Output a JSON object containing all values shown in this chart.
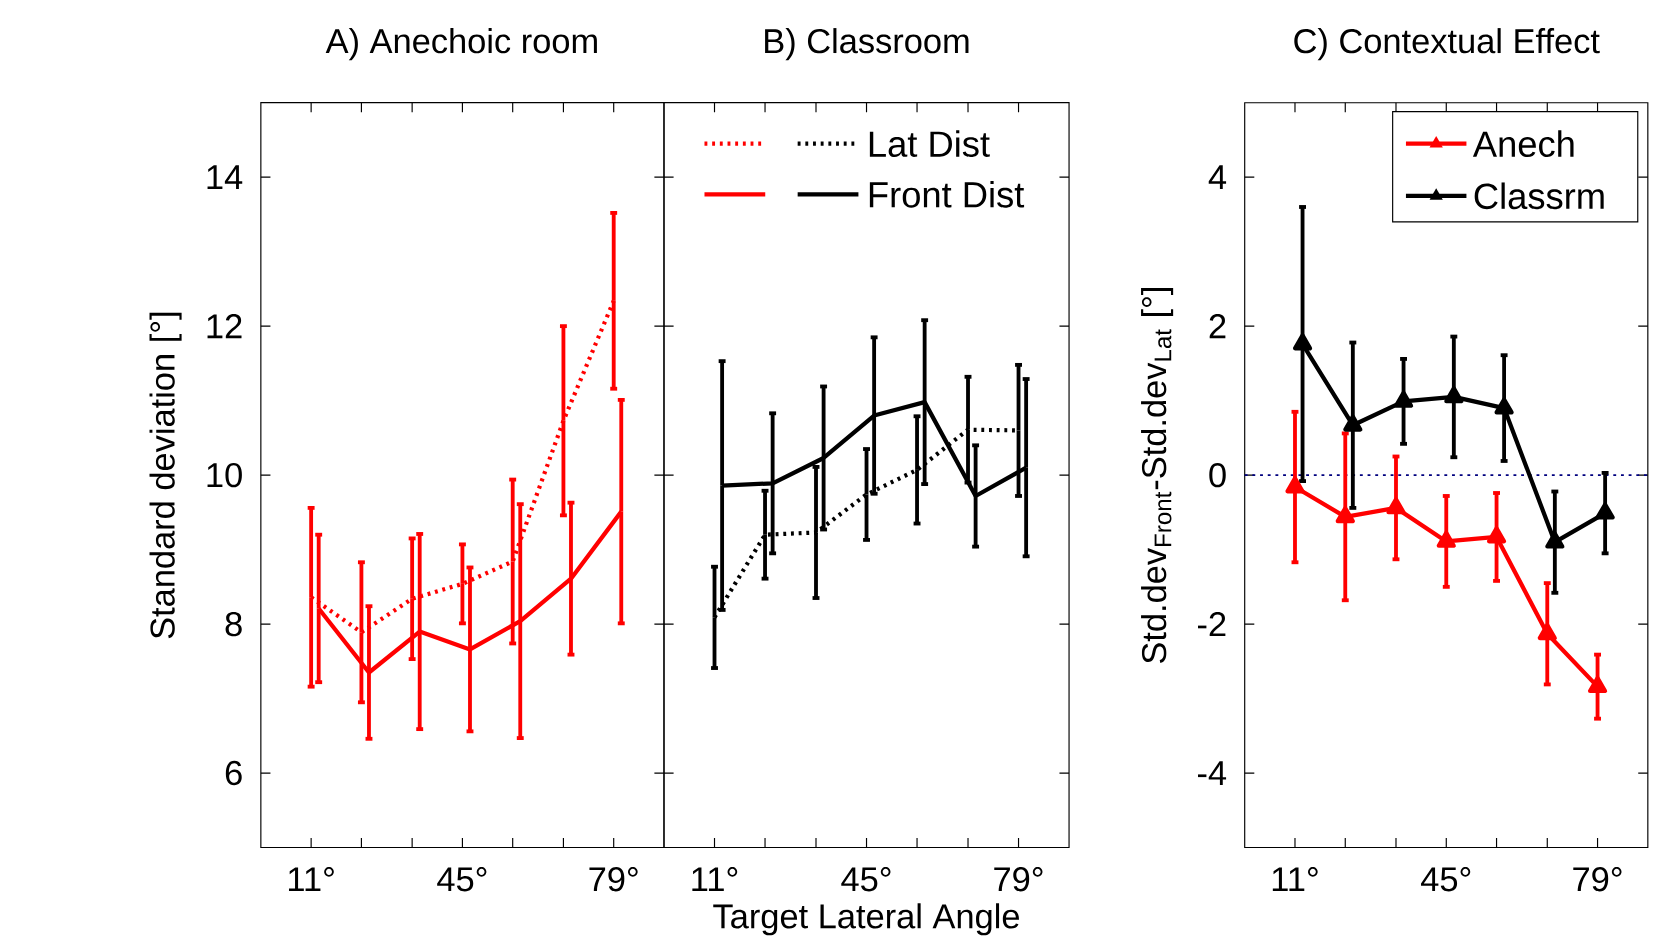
{
  "chart_data": [
    {
      "type": "line",
      "title": "A) Anechoic room",
      "ylabel": "Standard deviation [°]",
      "xlim": [
        -0.3,
        90.3
      ],
      "ylim": [
        5,
        15
      ],
      "marker": "none",
      "xticks": [
        {
          "value": 11,
          "label": "11°"
        },
        {
          "value": 22.3,
          "label": null
        },
        {
          "value": 33.7,
          "label": null
        },
        {
          "value": 45,
          "label": "45°"
        },
        {
          "value": 56.3,
          "label": null
        },
        {
          "value": 67.7,
          "label": null
        },
        {
          "value": 79,
          "label": "79°"
        }
      ],
      "yticks": [
        6,
        8,
        10,
        12,
        14
      ],
      "series": [
        {
          "color": "#ff0000",
          "line_style": "dotted",
          "x": [
            11,
            22.3,
            33.7,
            45,
            56.3,
            67.7,
            79
          ],
          "values": [
            8.36,
            7.89,
            8.34,
            8.54,
            8.84,
            10.73,
            12.34
          ],
          "errors": [
            1.2,
            0.94,
            0.81,
            0.53,
            1.1,
            1.27,
            1.18
          ]
        },
        {
          "color": "#ff0000",
          "line_style": "solid",
          "x": [
            12.7,
            24,
            35.4,
            46.7,
            58,
            69.4,
            80.7
          ],
          "values": [
            8.21,
            7.35,
            7.9,
            7.66,
            8.04,
            8.61,
            9.51
          ],
          "errors": [
            0.99,
            0.89,
            1.31,
            1.1,
            1.57,
            1.02,
            1.5
          ]
        }
      ]
    },
    {
      "type": "line",
      "title": "B) Classroom",
      "xlabel": "Target Lateral Angle",
      "xlim": [
        -0.3,
        90.3
      ],
      "ylim": [
        5,
        15
      ],
      "marker": "none",
      "tick_labels": "x",
      "legend": "top",
      "xticks": [
        {
          "value": 11,
          "label": "11°"
        },
        {
          "value": 22.3,
          "label": null
        },
        {
          "value": 33.7,
          "label": null
        },
        {
          "value": 45,
          "label": "45°"
        },
        {
          "value": 56.3,
          "label": null
        },
        {
          "value": 67.7,
          "label": null
        },
        {
          "value": 79,
          "label": "79°"
        }
      ],
      "yticks": [
        6,
        8,
        10,
        12,
        14
      ],
      "series": [
        {
          "name": "Lat Dist",
          "color": "#000000",
          "line_style": "dotted",
          "x": [
            11,
            22.3,
            33.7,
            45,
            56.3,
            67.7,
            79
          ],
          "values": [
            8.09,
            9.2,
            9.23,
            9.74,
            10.07,
            10.61,
            10.6
          ],
          "errors": [
            0.68,
            0.59,
            0.88,
            0.61,
            0.72,
            0.71,
            0.88
          ]
        },
        {
          "name": "Front Dist",
          "color": "#000000",
          "line_style": "solid",
          "x": [
            12.7,
            24,
            35.4,
            46.7,
            58,
            69.4,
            80.7
          ],
          "values": [
            9.86,
            9.89,
            10.23,
            10.8,
            10.98,
            9.72,
            10.1
          ],
          "errors": [
            1.67,
            0.94,
            0.96,
            1.05,
            1.1,
            0.68,
            1.19
          ]
        }
      ]
    },
    {
      "type": "line",
      "title": "C) Contextual Effect",
      "ylabel": "Std.dev$_{Front}$-Std.dev$_{Lat}$ [°]",
      "xlim": [
        -0.3,
        90.3
      ],
      "ylim": [
        -5,
        5
      ],
      "marker": "triangle",
      "line_style": "solid",
      "legend": "top right",
      "xticks": [
        {
          "value": 11,
          "label": "11°"
        },
        {
          "value": 22.3,
          "label": null
        },
        {
          "value": 33.7,
          "label": null
        },
        {
          "value": 45,
          "label": "45°"
        },
        {
          "value": 56.3,
          "label": null
        },
        {
          "value": 67.7,
          "label": null
        },
        {
          "value": 79,
          "label": "79°"
        }
      ],
      "yticks": [
        -4,
        -2,
        0,
        2,
        4
      ],
      "ref_lines": [
        {
          "axis": "y",
          "value": 0,
          "color": "#00007f",
          "line_style": "dotted"
        }
      ],
      "series": [
        {
          "name": "Anech",
          "color": "#ff0000",
          "x": [
            11,
            22.3,
            33.7,
            45,
            56.3,
            67.7,
            79
          ],
          "values": [
            -0.16,
            -0.56,
            -0.44,
            -0.89,
            -0.83,
            -2.13,
            -2.84
          ],
          "errors": [
            1.01,
            1.12,
            0.69,
            0.61,
            0.59,
            0.68,
            0.43
          ]
        },
        {
          "name": "Classrm",
          "color": "#000000",
          "x": [
            12.7,
            24,
            35.4,
            46.7,
            58,
            69.4,
            80.7
          ],
          "values": [
            1.76,
            0.67,
            0.99,
            1.05,
            0.9,
            -0.9,
            -0.51
          ],
          "errors": [
            1.84,
            1.11,
            0.57,
            0.81,
            0.71,
            0.68,
            0.54
          ]
        }
      ]
    }
  ]
}
